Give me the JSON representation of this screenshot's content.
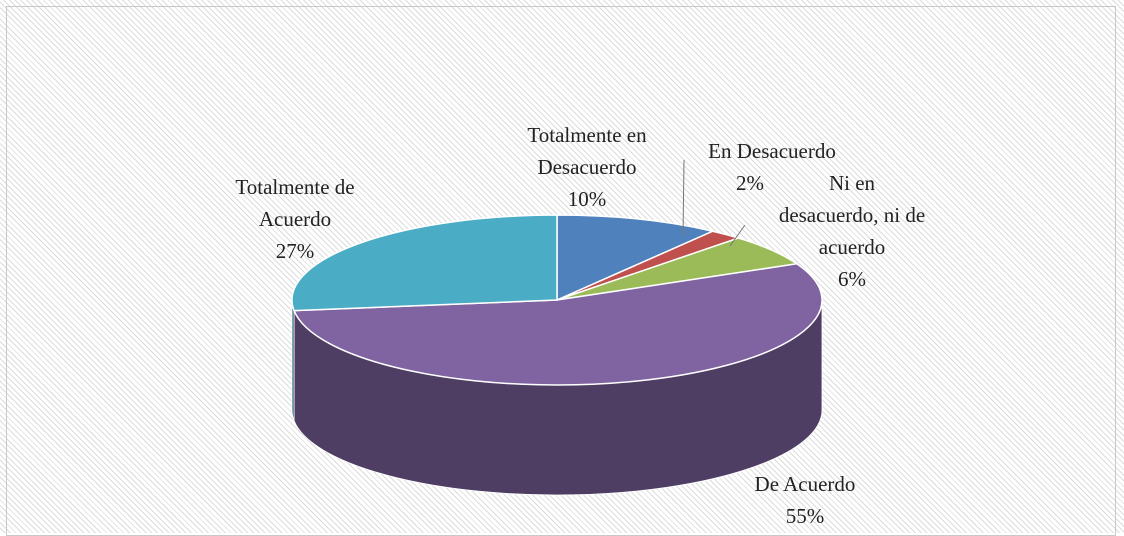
{
  "chart_data": {
    "type": "pie",
    "categories": [
      "Totalmente en Desacuerdo",
      "En Desacuerdo",
      "Ni en desacuerdo, ni de acuerdo",
      "De Acuerdo",
      "Totalmente de Acuerdo"
    ],
    "values": [
      10,
      2,
      6,
      55,
      27
    ],
    "value_labels": [
      "10%",
      "2%",
      "6%",
      "55%",
      "27%"
    ],
    "colors": [
      "#4f81bd",
      "#c0504d",
      "#9bbb59",
      "#8064a2",
      "#4bacc6"
    ]
  }
}
